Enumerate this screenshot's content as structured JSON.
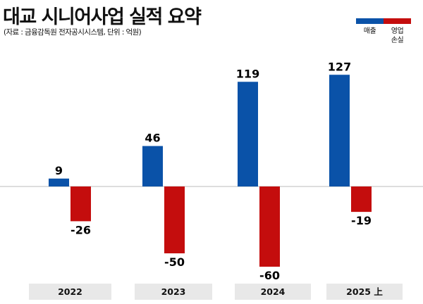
{
  "title": "대교 시니어사업 실적 요약",
  "subtitle": "(자료 : 금융감독원 전자공시시스템, 단위 : 억원)",
  "legend": [
    {
      "label": "매출",
      "color": "#0a52a8"
    },
    {
      "label": "영업\n손실",
      "color": "#c40d0d"
    }
  ],
  "chart_data": {
    "type": "bar",
    "title": "대교 시니어사업 실적 요약",
    "xlabel": "",
    "ylabel": "억원",
    "categories": [
      "2022",
      "2023",
      "2024",
      "2025 上"
    ],
    "series": [
      {
        "name": "매출",
        "color": "#0a52a8",
        "values": [
          9,
          46,
          119,
          127
        ]
      },
      {
        "name": "영업 손실",
        "color": "#c40d0d",
        "values": [
          -26,
          -50,
          -60,
          -19
        ]
      }
    ],
    "legend_position": "top-right",
    "grid": false
  }
}
